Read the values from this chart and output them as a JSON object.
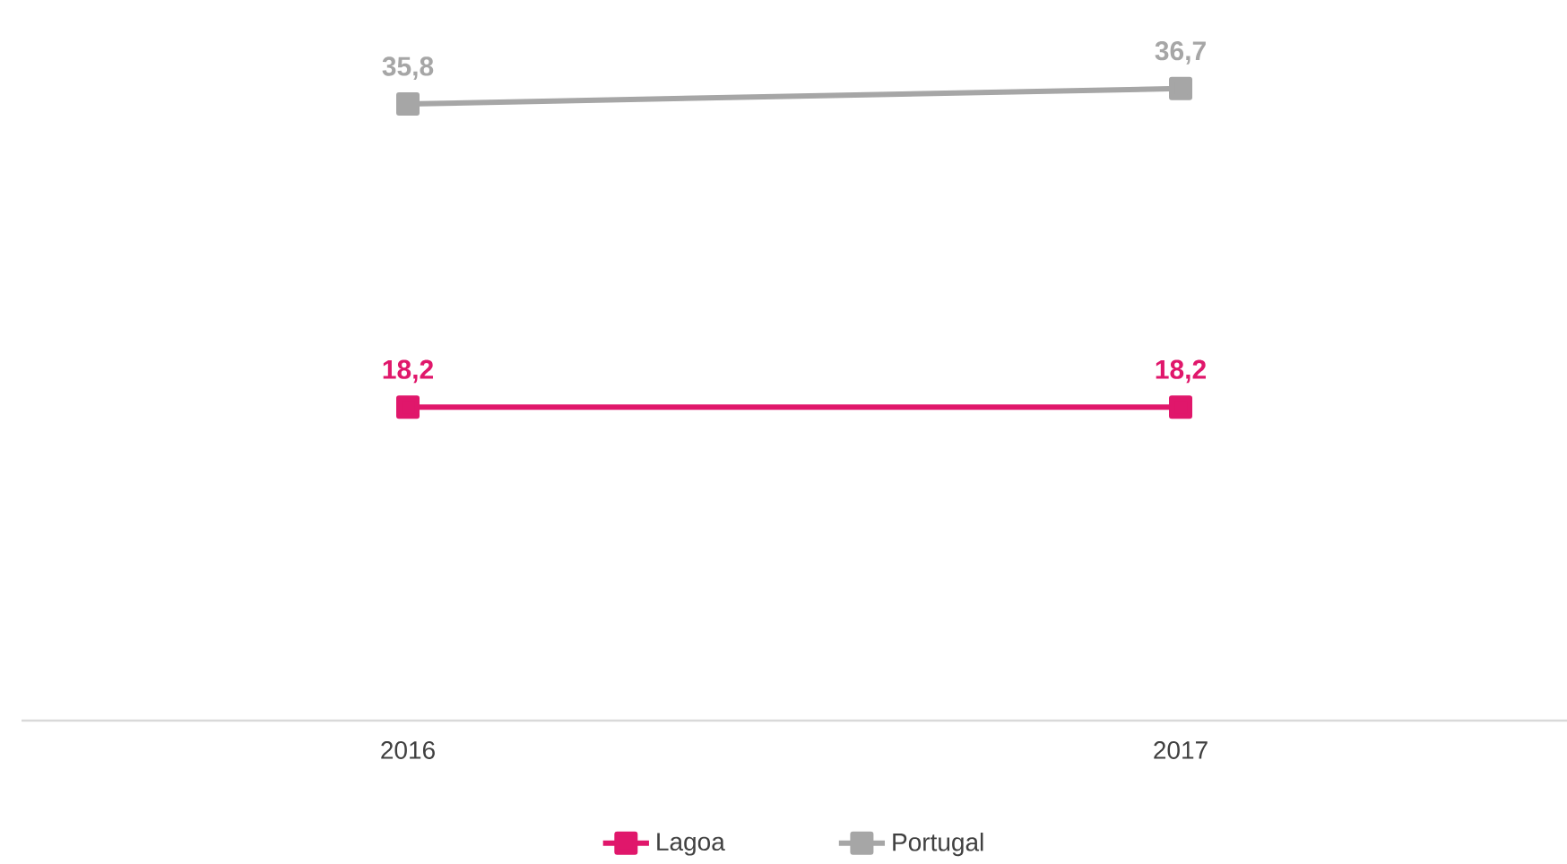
{
  "chart_data": {
    "type": "line",
    "categories": [
      "2016",
      "2017"
    ],
    "series": [
      {
        "name": "Lagoa",
        "color": "#e0176b",
        "values": [
          18.2,
          18.2
        ],
        "value_labels": [
          "18,2",
          "18,2"
        ]
      },
      {
        "name": "Portugal",
        "color": "#a6a6a6",
        "values": [
          35.8,
          36.7
        ],
        "value_labels": [
          "35,8",
          "36,7"
        ]
      }
    ],
    "tick_labels": "x",
    "legend": "bottom",
    "marker": "square",
    "line_style": "solid",
    "grid": false
  }
}
